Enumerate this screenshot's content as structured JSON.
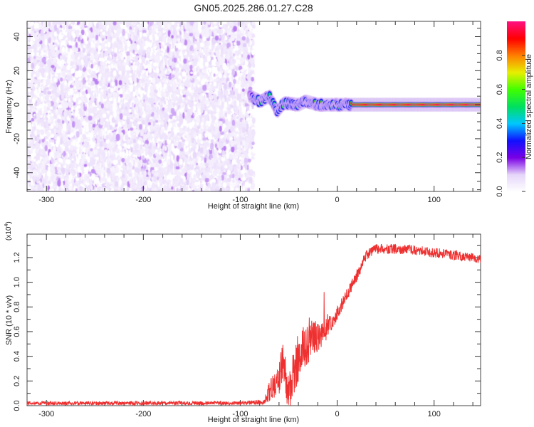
{
  "title": "GN05.2025.286.01.27.C28",
  "chart_data": [
    {
      "type": "heatmap",
      "title": "GN05.2025.286.01.27.C28",
      "xlabel": "Height of straight line (km)",
      "ylabel": "Frequency (Hz)",
      "xlim": [
        -320,
        148
      ],
      "ylim": [
        -51,
        49
      ],
      "xticks": [
        -300,
        -200,
        -100,
        0,
        100
      ],
      "yticks": [
        -40,
        -20,
        0,
        20,
        40
      ],
      "colorbar": {
        "label": "Normalized spectral amplitude",
        "range": [
          0,
          1
        ],
        "ticks": [
          0.0,
          0.2,
          0.4,
          0.6,
          0.8
        ],
        "tick_labels": [
          "0.0",
          "0.2",
          "0.4",
          "0.6",
          "0.8"
        ],
        "colormap": [
          "#ffffff",
          "#e6d6fa",
          "#7a00e6",
          "#1010ff",
          "#00c8ff",
          "#00e060",
          "#40ff00",
          "#e6f000",
          "#ff8000",
          "#ff0000",
          "#ff1080"
        ]
      },
      "noise_region": {
        "x_range": [
          -320,
          -90
        ],
        "freq_range": [
          -51,
          49
        ],
        "amplitude_range": [
          0.0,
          0.12
        ]
      },
      "signal_track": {
        "freq_hz": 0,
        "points": [
          {
            "x": -90,
            "freq": 5,
            "amp": 0.15
          },
          {
            "x": -80,
            "freq": 2,
            "amp": 0.6
          },
          {
            "x": -70,
            "freq": 5,
            "amp": 0.5
          },
          {
            "x": -62,
            "freq": -4,
            "amp": 0.45
          },
          {
            "x": -55,
            "freq": 1,
            "amp": 0.6
          },
          {
            "x": -40,
            "freq": 0,
            "amp": 0.8
          },
          {
            "x": -33,
            "freq": 2,
            "amp": 0.85
          },
          {
            "x": -20,
            "freq": 0,
            "amp": 0.85
          },
          {
            "x": 15,
            "freq": 0,
            "amp": 0.95
          },
          {
            "x": 148,
            "freq": 0,
            "amp": 0.98
          }
        ]
      }
    },
    {
      "type": "line",
      "xlabel": "Height of straight line (km)",
      "ylabel": "SNR (10 * v/v)",
      "multiplier_label": "(x10",
      "multiplier_exp": "4",
      "multiplier_close": ")",
      "xlim": [
        -320,
        148
      ],
      "ylim": [
        0,
        1.39
      ],
      "xticks": [
        -300,
        -200,
        -100,
        0,
        100
      ],
      "yticks": [
        0.0,
        0.2,
        0.4,
        0.6,
        0.8,
        1.0,
        1.2
      ],
      "ytick_labels": [
        "0.0",
        "0.2",
        "0.4",
        "0.6",
        "0.8",
        "1.0",
        "1.2"
      ],
      "color": "#ee3030",
      "series": [
        {
          "name": "SNR",
          "x": [
            -320,
            -100,
            -75,
            -70,
            -62,
            -55,
            -50,
            -45,
            -40,
            -32,
            -25,
            -15,
            -5,
            0,
            10,
            20,
            30,
            40,
            60,
            80,
            100,
            120,
            148
          ],
          "values": [
            0.02,
            0.02,
            0.03,
            0.12,
            0.18,
            0.35,
            0.08,
            0.25,
            0.4,
            0.5,
            0.55,
            0.58,
            0.68,
            0.75,
            0.9,
            1.05,
            1.22,
            1.27,
            1.27,
            1.26,
            1.24,
            1.22,
            1.19
          ],
          "jitter": [
            0.015,
            0.015,
            0.02,
            0.1,
            0.12,
            0.2,
            0.15,
            0.2,
            0.2,
            0.18,
            0.15,
            0.1,
            0.07,
            0.06,
            0.05,
            0.05,
            0.04,
            0.04,
            0.04,
            0.04,
            0.04,
            0.04,
            0.04
          ]
        }
      ]
    }
  ]
}
